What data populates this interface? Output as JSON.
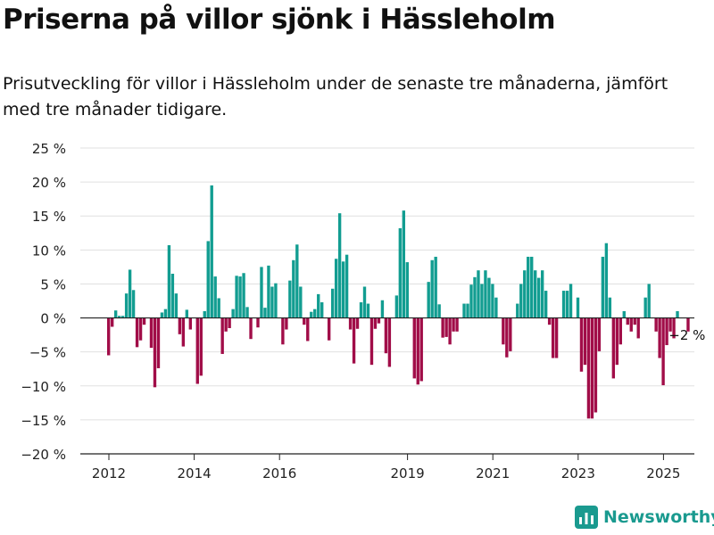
{
  "title": "Priserna på villor sjönk i Hässleholm",
  "subtitle": "Prisutveckling för villor i Hässleholm under de senaste tre månaderna, jämfört med tre månader tidigare.",
  "brand": "Newsworthy",
  "colors": {
    "positive": "#129d91",
    "negative": "#a10d48",
    "grid": "#e0e0e0",
    "brand": "#1a9a8f"
  },
  "chart_data": {
    "type": "bar",
    "ylim": [
      -20,
      25
    ],
    "y_ticks": [
      {
        "value": 25,
        "label": "25 %"
      },
      {
        "value": 20,
        "label": "20 %"
      },
      {
        "value": 15,
        "label": "15 %"
      },
      {
        "value": 10,
        "label": "10 %"
      },
      {
        "value": 5,
        "label": "5 %"
      },
      {
        "value": 0,
        "label": "0 %"
      },
      {
        "value": -5,
        "label": "−5 %"
      },
      {
        "value": -10,
        "label": "−10 %"
      },
      {
        "value": -15,
        "label": "−15 %"
      },
      {
        "value": -20,
        "label": "−20 %"
      }
    ],
    "x_ticks": [
      {
        "year": 2012,
        "label": "2012"
      },
      {
        "year": 2014,
        "label": "2014"
      },
      {
        "year": 2016,
        "label": "2016"
      },
      {
        "year": 2019,
        "label": "2019"
      },
      {
        "year": 2021,
        "label": "2021"
      },
      {
        "year": 2023,
        "label": "2023"
      },
      {
        "year": 2025,
        "label": "2025"
      }
    ],
    "start_year": 2012,
    "start_month": 1,
    "values": [
      -5.5,
      -1.3,
      1.1,
      0.3,
      0.3,
      3.6,
      7.1,
      4.1,
      -4.3,
      -3.3,
      -1.0,
      0,
      -4.4,
      -10.2,
      -7.4,
      0.8,
      1.3,
      10.7,
      6.5,
      3.6,
      -2.4,
      -4.2,
      1.2,
      -1.7,
      0,
      -9.7,
      -8.5,
      1.0,
      11.3,
      19.5,
      6.1,
      2.9,
      -5.3,
      -2.0,
      -1.5,
      1.3,
      6.2,
      6.1,
      6.6,
      1.6,
      -3.1,
      0,
      -1.4,
      7.5,
      1.5,
      7.7,
      4.6,
      5.1,
      0,
      -3.9,
      -1.7,
      5.5,
      8.5,
      10.8,
      4.6,
      -1.0,
      -3.4,
      0.9,
      1.3,
      3.5,
      2.3,
      0,
      -3.3,
      4.3,
      8.7,
      15.4,
      8.3,
      9.3,
      -1.7,
      -6.7,
      -1.6,
      2.3,
      4.6,
      2.1,
      -6.9,
      -1.6,
      -0.8,
      2.6,
      -5.2,
      -7.2,
      0,
      3.3,
      13.2,
      15.8,
      8.2,
      0,
      -8.9,
      -9.8,
      -9.3,
      0,
      5.3,
      8.5,
      9.0,
      2.0,
      -2.9,
      -2.8,
      -3.9,
      -2.0,
      -2.0,
      0,
      2.1,
      2.1,
      4.9,
      6.0,
      7.0,
      5.0,
      7.0,
      5.9,
      5.0,
      3.0,
      0,
      -3.9,
      -5.8,
      -4.9,
      0,
      2.1,
      5.0,
      7.0,
      9.0,
      9.0,
      7.0,
      5.9,
      7.0,
      4.0,
      -1.0,
      -5.9,
      -5.9,
      0,
      4.0,
      4.0,
      5.0,
      0,
      3.0,
      -7.9,
      -6.9,
      -14.8,
      -14.8,
      -13.9,
      -4.9,
      9.0,
      11.0,
      3.0,
      -8.9,
      -6.9,
      -3.9,
      1.0,
      -1.0,
      -2.0,
      -1.0,
      -3.0,
      0,
      3.0,
      5.0,
      0,
      -2.0,
      -5.9,
      -9.9,
      -4.0,
      -2.0,
      -3.0,
      1.0,
      0,
      0,
      -2.0
    ],
    "last_label": "−2 %"
  }
}
